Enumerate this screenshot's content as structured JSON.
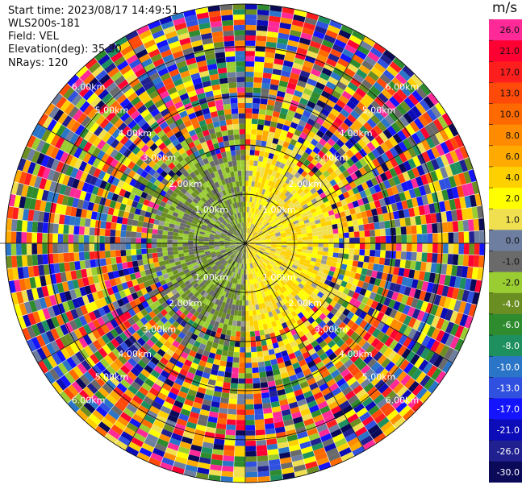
{
  "header": {
    "start_time": "Start time: 2023/08/17 14:49:51",
    "instrument": "WLS200s-181",
    "field": "Field: VEL",
    "elevation": "Elevation(deg): 35.30",
    "nrays": "NRays: 120"
  },
  "chart_data": {
    "type": "heatmap",
    "title": "",
    "projection": "polar-ppi",
    "field": "VEL",
    "units": "m/s",
    "nrays": 120,
    "elevation_deg": 35.3,
    "range_ring_labels_km": [
      "1.00km",
      "2.00km",
      "3.00km",
      "4.00km",
      "5.00km",
      "6.00km"
    ],
    "colorbar": {
      "unit": "m/s",
      "ticks": [
        "26.0",
        "21.0",
        "17.0",
        "13.0",
        "10.0",
        "8.0",
        "6.0",
        "4.0",
        "2.0",
        "1.0",
        "0.0",
        "-1.0",
        "-2.0",
        "-4.0",
        "-6.0",
        "-8.0",
        "-10.0",
        "-13.0",
        "-17.0",
        "-21.0",
        "-26.0",
        "-30.0"
      ],
      "colors": [
        "#ff2a98",
        "#ff0033",
        "#ff1e1e",
        "#ff4a0a",
        "#ff6a00",
        "#ff8c00",
        "#ffaa00",
        "#ffd000",
        "#ffff00",
        "#f0e050",
        "#6e7ea0",
        "#6a6a6a",
        "#9acd32",
        "#6b8e23",
        "#2e8b2e",
        "#1e9060",
        "#2a75c8",
        "#3050e0",
        "#1414ff",
        "#0c0cb8",
        "#202090",
        "#0a0a58"
      ]
    },
    "grid": true,
    "notes_visible": "inner region mostly low velocities (yellow positive on right, green negative on left); outer gates noisy across full scale"
  }
}
